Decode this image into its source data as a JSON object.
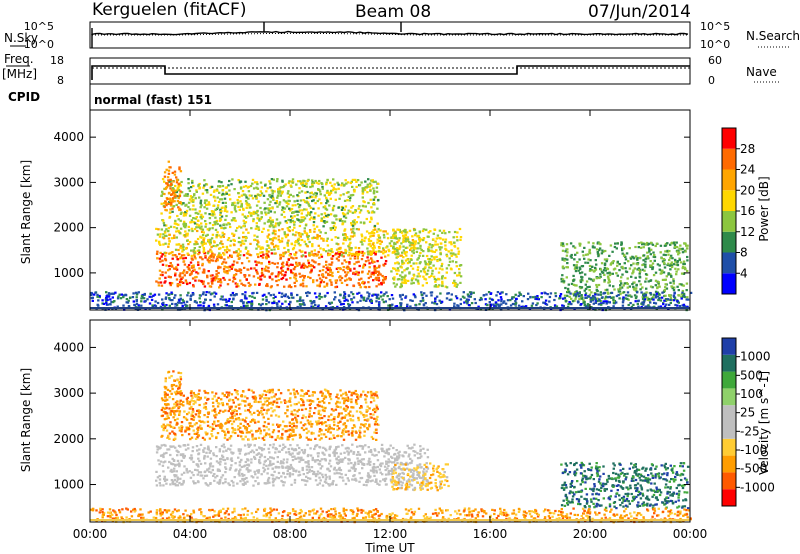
{
  "header": {
    "station": "Kerguelen (fitACF)",
    "beam": "Beam 08",
    "date": "07/Jun/2014"
  },
  "params": {
    "nsky_label": "N.Sky",
    "nsearch_label": "N.Search",
    "freq_label_1": "Freq.",
    "freq_label_2": "[MHz]",
    "nave_label": "Nave",
    "cpid_label": "CPID",
    "cpid_value": "normal (fast) 151",
    "noise_ticks_left": [
      "10^5",
      "10^0"
    ],
    "noise_ticks_right": [
      "10^5",
      "10^0"
    ],
    "freq_ticks_left": [
      "18",
      "8"
    ],
    "nave_ticks_right": [
      "60",
      "0"
    ]
  },
  "colors": {
    "power_scale": [
      "#0000ff",
      "#1f4fa8",
      "#2e8a4a",
      "#8cc63f",
      "#ffd700",
      "#ffa500",
      "#ff6a00",
      "#ff0000"
    ],
    "velocity_scale": [
      "#ff0000",
      "#ff5a00",
      "#ff9d00",
      "#ffcc33",
      "#bfbfbf",
      "#bfbfbf",
      "#8fd16a",
      "#3fa83a",
      "#1f6f5f",
      "#1f3fa8"
    ],
    "ground_scatter": "#bfbfbf"
  },
  "chart_data": [
    {
      "type": "heatmap",
      "title": "Power",
      "ylabel": "Slant Range [km]",
      "xlabel": "",
      "x_ticks": [
        "00:00",
        "04:00",
        "08:00",
        "12:00",
        "16:00",
        "20:00",
        "00:00"
      ],
      "y_ticks": [
        "1000",
        "2000",
        "3000",
        "4000"
      ],
      "xlim": [
        0,
        24
      ],
      "ylim": [
        180,
        4600
      ],
      "colorbar": {
        "label": "Power [dB]",
        "ticks": [
          "4",
          "8",
          "12",
          "16",
          "20",
          "24",
          "28"
        ],
        "range": [
          0,
          32
        ]
      },
      "regions": [
        {
          "x": [
            2.6,
            11.8
          ],
          "y": [
            700,
            1500
          ],
          "level": 26
        },
        {
          "x": [
            2.6,
            13.0
          ],
          "y": [
            1400,
            2000
          ],
          "level": 18
        },
        {
          "x": [
            2.8,
            11.5
          ],
          "y": [
            2000,
            3100
          ],
          "level": 15
        },
        {
          "x": [
            2.9,
            3.6
          ],
          "y": [
            2400,
            3500
          ],
          "level": 24
        },
        {
          "x": [
            12.0,
            14.8
          ],
          "y": [
            700,
            2000
          ],
          "level": 16
        },
        {
          "x": [
            18.8,
            23.9
          ],
          "y": [
            400,
            1700
          ],
          "level": 12
        },
        {
          "x": [
            0.0,
            24.0
          ],
          "y": [
            200,
            600
          ],
          "level": 6
        }
      ]
    },
    {
      "type": "heatmap",
      "title": "Velocity",
      "ylabel": "Slant Range [km]",
      "xlabel": "Time UT",
      "x_ticks": [
        "00:00",
        "04:00",
        "08:00",
        "12:00",
        "16:00",
        "20:00",
        "00:00"
      ],
      "y_ticks": [
        "1000",
        "2000",
        "3000",
        "4000"
      ],
      "xlim": [
        0,
        24
      ],
      "ylim": [
        180,
        4600
      ],
      "colorbar": {
        "label": "Velocity [m s^-1]",
        "ticks": [
          "-1000",
          "-500",
          "-100",
          "-25",
          "25",
          "100",
          "500",
          "1000"
        ]
      },
      "regions": [
        {
          "x": [
            2.6,
            13.5
          ],
          "y": [
            1000,
            1900
          ],
          "value": 0,
          "ground": true
        },
        {
          "x": [
            2.8,
            11.5
          ],
          "y": [
            2000,
            3100
          ],
          "value": -200
        },
        {
          "x": [
            2.9,
            3.6
          ],
          "y": [
            2600,
            3500
          ],
          "value": -300
        },
        {
          "x": [
            12.0,
            14.3
          ],
          "y": [
            900,
            1500
          ],
          "value": -50
        },
        {
          "x": [
            18.8,
            23.9
          ],
          "y": [
            500,
            1500
          ],
          "value": 300
        },
        {
          "x": [
            0.0,
            24.0
          ],
          "y": [
            200,
            500
          ],
          "value": -80
        }
      ]
    }
  ]
}
